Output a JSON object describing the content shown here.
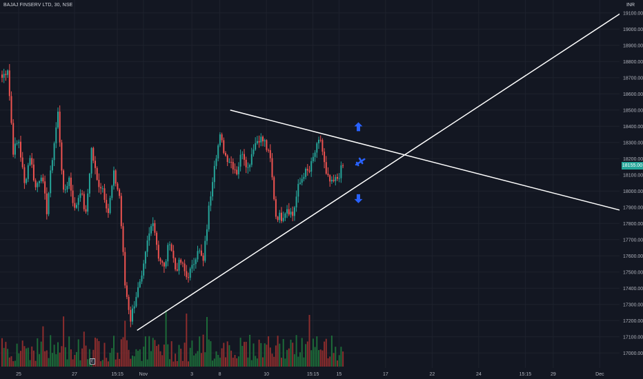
{
  "header": {
    "symbol": "BAJAJ FINSERV LTD, 30, NSE",
    "currency": "INR"
  },
  "price_tag": {
    "value": "18155.00",
    "price": 18155
  },
  "colors": {
    "background": "#131722",
    "grid": "#1e222d",
    "up": "#26a69a",
    "down": "#ef5350",
    "vol_up": "#1d6b39",
    "vol_down": "#8d2d2d",
    "trendline": "#ffffff",
    "arrow": "#2962ff"
  },
  "chart_data": {
    "type": "candlestick",
    "title": "",
    "ylabel": "",
    "xlabel": "",
    "ylim": [
      16950,
      19150
    ],
    "grid": true,
    "y_ticks": [
      17000,
      17100,
      17200,
      17300,
      17400,
      17500,
      17600,
      17700,
      17800,
      17900,
      18000,
      18100,
      18200,
      18300,
      18400,
      18500,
      18600,
      18700,
      18800,
      18900,
      19000,
      19100
    ],
    "y_tick_labels": [
      "17000.00",
      "17100.00",
      "17200.00",
      "17300.00",
      "17400.00",
      "17500.00",
      "17600.00",
      "17700.00",
      "17800.00",
      "17900.00",
      "18000.00",
      "18100.00",
      "18200.00",
      "18300.00",
      "18400.00",
      "18500.00",
      "18600.00",
      "18700.00",
      "18800.00",
      "18900.00",
      "19000.00",
      "19100.00"
    ],
    "x_tick_labels": [
      {
        "label": "25",
        "bar": 0
      },
      {
        "label": "27",
        "bar": 30
      },
      {
        "label": "15:15",
        "bar": 53
      },
      {
        "label": "Nov",
        "bar": 67
      },
      {
        "label": "3",
        "bar": 93
      },
      {
        "label": "8",
        "bar": 108
      },
      {
        "label": "10",
        "bar": 133
      },
      {
        "label": "15:15",
        "bar": 158
      },
      {
        "label": "15",
        "bar": 172
      },
      {
        "label": "17",
        "bar": 197
      },
      {
        "label": "22",
        "bar": 222
      },
      {
        "label": "24",
        "bar": 247
      },
      {
        "label": "15:15",
        "bar": 272
      },
      {
        "label": "29",
        "bar": 287
      },
      {
        "label": "Dec",
        "bar": 312
      }
    ],
    "bar_count_visible": 333,
    "ohlc_anchors": [
      [
        0,
        18700
      ],
      [
        3,
        18760
      ],
      [
        6,
        18250
      ],
      [
        9,
        18310
      ],
      [
        12,
        18040
      ],
      [
        15,
        18220
      ],
      [
        18,
        18020
      ],
      [
        21,
        18110
      ],
      [
        24,
        17880
      ],
      [
        27,
        18210
      ],
      [
        30,
        18480
      ],
      [
        33,
        17980
      ],
      [
        36,
        18080
      ],
      [
        39,
        17880
      ],
      [
        42,
        18010
      ],
      [
        45,
        17850
      ],
      [
        48,
        18260
      ],
      [
        51,
        18060
      ],
      [
        54,
        18020
      ],
      [
        57,
        17870
      ],
      [
        60,
        18100
      ],
      [
        63,
        17970
      ],
      [
        66,
        17420
      ],
      [
        69,
        17210
      ],
      [
        72,
        17360
      ],
      [
        75,
        17450
      ],
      [
        78,
        17680
      ],
      [
        81,
        17830
      ],
      [
        84,
        17600
      ],
      [
        87,
        17520
      ],
      [
        90,
        17700
      ],
      [
        93,
        17520
      ],
      [
        96,
        17560
      ],
      [
        99,
        17470
      ],
      [
        102,
        17520
      ],
      [
        105,
        17650
      ],
      [
        108,
        17560
      ],
      [
        111,
        17890
      ],
      [
        114,
        18180
      ],
      [
        117,
        18330
      ],
      [
        120,
        18220
      ],
      [
        123,
        18180
      ],
      [
        126,
        18120
      ],
      [
        129,
        18250
      ],
      [
        132,
        18140
      ],
      [
        135,
        18280
      ],
      [
        138,
        18330
      ],
      [
        141,
        18300
      ],
      [
        144,
        18190
      ],
      [
        147,
        17850
      ],
      [
        150,
        17840
      ],
      [
        153,
        17900
      ],
      [
        156,
        17850
      ],
      [
        159,
        18020
      ],
      [
        162,
        18110
      ],
      [
        165,
        18120
      ],
      [
        168,
        18240
      ],
      [
        171,
        18320
      ],
      [
        174,
        18090
      ],
      [
        177,
        18040
      ],
      [
        180,
        18080
      ],
      [
        183,
        18155
      ]
    ],
    "trendlines": [
      {
        "name": "descending",
        "from": {
          "bar": 121,
          "price": 18500
        },
        "to": {
          "bar": 332,
          "price": 17880
        }
      },
      {
        "name": "ascending",
        "from": {
          "bar": 71,
          "price": 17140
        },
        "to": {
          "bar": 332,
          "price": 19100
        }
      }
    ],
    "markers": [
      {
        "icon": "arrow-up-icon",
        "bar": 185,
        "price": 18395
      },
      {
        "icon": "airplane-icon",
        "bar": 186,
        "price": 18180
      },
      {
        "icon": "arrow-down-icon",
        "bar": 185,
        "price": 17955
      }
    ],
    "volume": {
      "max_fraction_of_height": 0.16
    }
  }
}
